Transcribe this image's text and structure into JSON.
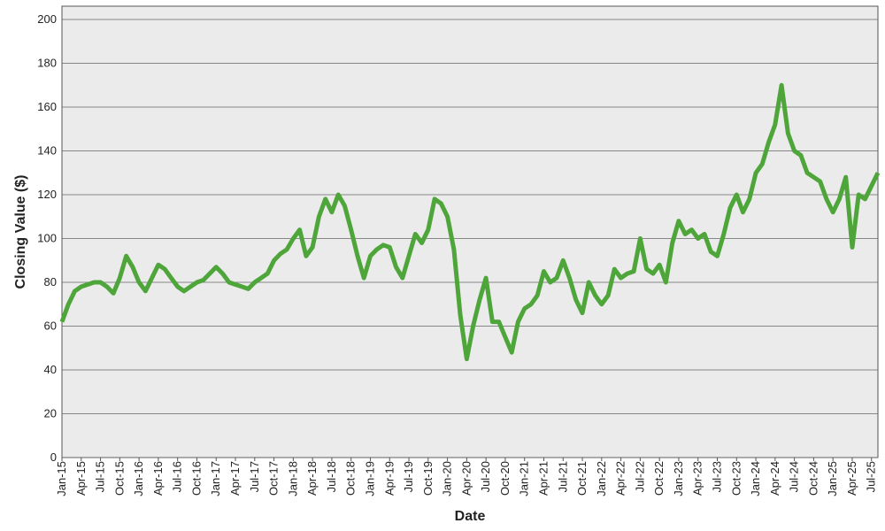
{
  "chart_data": {
    "type": "line",
    "x_label": "Date",
    "y_label": "Closing Value ($)",
    "categories": [
      "Jan-15",
      null,
      null,
      "Apr-15",
      null,
      null,
      "Jul-15",
      null,
      null,
      "Oct-15",
      null,
      null,
      "Jan-16",
      null,
      null,
      "Apr-16",
      null,
      null,
      "Jul-16",
      null,
      null,
      "Oct-16",
      null,
      null,
      "Jan-17",
      null,
      null,
      "Apr-17",
      null,
      null,
      "Jul-17",
      null,
      null,
      "Oct-17",
      null,
      null,
      "Jan-18",
      null,
      null,
      "Apr-18",
      null,
      null,
      "Jul-18",
      null,
      null,
      "Oct-18",
      null,
      null,
      "Jan-19",
      null,
      null,
      "Apr-19",
      null,
      null,
      "Jul-19",
      null,
      null,
      "Oct-19",
      null,
      null,
      "Jan-20",
      null,
      null,
      "Apr-20",
      null,
      null,
      "Jul-20",
      null,
      null,
      "Oct-20",
      null,
      null,
      "Jan-21",
      null,
      null,
      "Apr-21",
      null,
      null,
      "Jul-21",
      null,
      null,
      "Oct-21",
      null,
      null,
      "Jan-22",
      null,
      null,
      "Apr-22",
      null,
      null,
      "Jul-22",
      null,
      null,
      "Oct-22",
      null,
      null,
      "Jan-23",
      null,
      null,
      "Apr-23",
      null,
      null,
      "Jul-23",
      null,
      null,
      "Oct-23",
      null,
      null,
      "Jan-24",
      null,
      null,
      "Apr-24",
      null,
      null,
      "Jul-24",
      null,
      null,
      "Oct-24",
      null,
      null,
      "Jan-25",
      null,
      null,
      "Apr-25",
      null,
      null,
      "Jul-25",
      null
    ],
    "values": [
      62,
      70,
      76,
      78,
      79,
      80,
      80,
      78,
      75,
      82,
      92,
      87,
      80,
      76,
      82,
      88,
      86,
      82,
      78,
      76,
      78,
      80,
      81,
      84,
      87,
      84,
      80,
      79,
      78,
      77,
      80,
      82,
      84,
      90,
      93,
      95,
      100,
      104,
      92,
      96,
      110,
      118,
      112,
      120,
      115,
      104,
      92,
      82,
      92,
      95,
      97,
      96,
      87,
      82,
      92,
      102,
      98,
      104,
      118,
      116,
      110,
      95,
      65,
      45,
      60,
      72,
      82,
      62,
      62,
      55,
      48,
      62,
      68,
      70,
      74,
      85,
      80,
      82,
      90,
      82,
      72,
      66,
      80,
      74,
      70,
      74,
      86,
      82,
      84,
      85,
      100,
      86,
      84,
      88,
      80,
      98,
      108,
      102,
      104,
      100,
      102,
      94,
      92,
      102,
      114,
      120,
      112,
      118,
      130,
      134,
      144,
      152,
      170,
      148,
      140,
      138,
      130,
      128,
      126,
      118,
      112,
      118,
      128,
      96,
      120,
      118,
      124,
      130
    ],
    "color": "#4ea53a",
    "ylim": [
      0,
      200
    ],
    "yticks": [
      0,
      20,
      40,
      60,
      80,
      100,
      120,
      140,
      160,
      180,
      200
    ],
    "grid": true
  }
}
